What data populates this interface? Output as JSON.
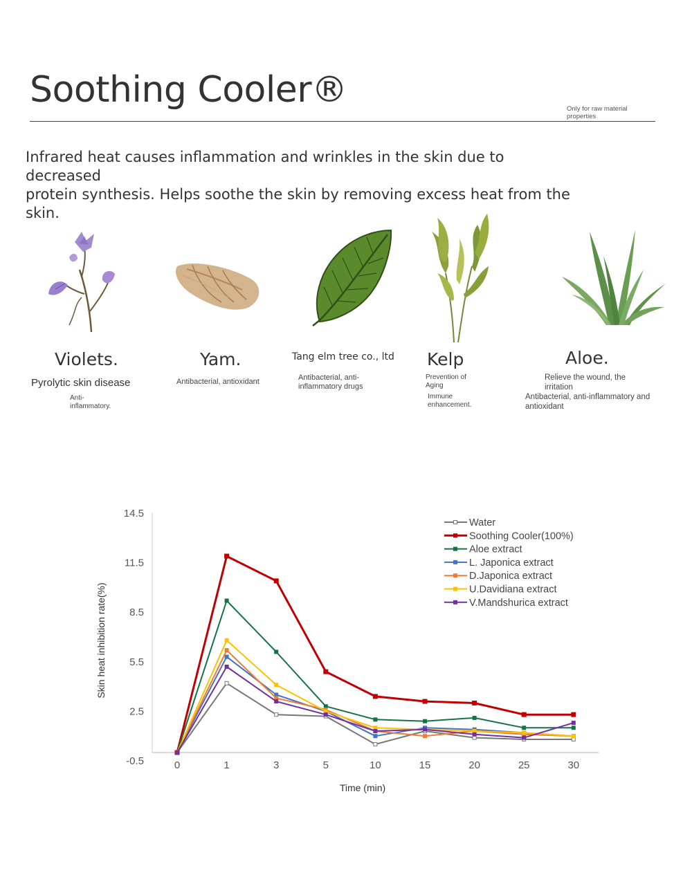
{
  "header": {
    "title": "Soothing Cooler®",
    "note": "Only for raw material properties"
  },
  "intro": {
    "line1": "Infrared heat causes inflammation and wrinkles in the skin due to decreased",
    "line2": "protein synthesis. Helps soothe the skin by removing excess heat from the skin."
  },
  "ingredients": [
    {
      "name": "Violets.",
      "desc1": "Pyrolytic skin disease",
      "desc2": "Anti-\ninflammatory."
    },
    {
      "name": "Yam.",
      "desc1": "Antibacterial, antioxidant"
    },
    {
      "name": "Tang elm tree co., ltd",
      "desc1": "Antibacterial, anti-\ninflammatory drugs"
    },
    {
      "name": "Kelp",
      "desc1": "Prevention of\nAging",
      "desc2": "Immune\nenhancement."
    },
    {
      "name": "Aloe.",
      "desc1": "Relieve the wound, the\nirritation",
      "desc2": "Antibacterial, anti-inflammatory and\nantioxidant"
    }
  ],
  "chart_data": {
    "type": "line",
    "xlabel": "Time (min)",
    "ylabel": "Skin heat inhibition rate(%)",
    "categories": [
      "0",
      "1",
      "3",
      "5",
      "10",
      "15",
      "20",
      "25",
      "30"
    ],
    "y_ticks": [
      "14.5",
      "11.5",
      "8.5",
      "5.5",
      "2.5",
      "-0.5"
    ],
    "ylim": [
      -0.5,
      14.5
    ],
    "legend_position": "top-right",
    "grid": false,
    "series": [
      {
        "name": "Water",
        "color": "#777777",
        "values": [
          0,
          4.2,
          2.3,
          2.2,
          0.5,
          1.3,
          0.9,
          0.8,
          0.8
        ]
      },
      {
        "name": "Soothing Cooler(100%)",
        "color": "#c00000",
        "values": [
          0,
          11.9,
          10.4,
          4.9,
          3.4,
          3.1,
          3.0,
          2.3,
          2.3
        ]
      },
      {
        "name": "Aloe extract",
        "color": "#137346",
        "values": [
          0,
          9.2,
          6.1,
          2.8,
          2.0,
          1.9,
          2.1,
          1.5,
          1.5
        ]
      },
      {
        "name": "L. Japonica extract",
        "color": "#4472c4",
        "values": [
          0,
          5.8,
          3.5,
          2.5,
          1.0,
          1.5,
          1.4,
          1.2,
          1.0
        ]
      },
      {
        "name": "D.Japonica extract",
        "color": "#ed7d31",
        "values": [
          0,
          6.2,
          3.3,
          2.6,
          1.3,
          1.0,
          1.3,
          1.1,
          1.0
        ]
      },
      {
        "name": "U.Davidiana extract",
        "color": "#ffc000",
        "values": [
          0,
          6.8,
          4.1,
          2.5,
          1.5,
          1.4,
          1.3,
          1.2,
          1.0
        ]
      },
      {
        "name": "V.Mandshurica extract",
        "color": "#7030a0",
        "values": [
          0,
          5.2,
          3.1,
          2.3,
          1.3,
          1.4,
          1.1,
          0.9,
          1.8
        ]
      }
    ]
  }
}
